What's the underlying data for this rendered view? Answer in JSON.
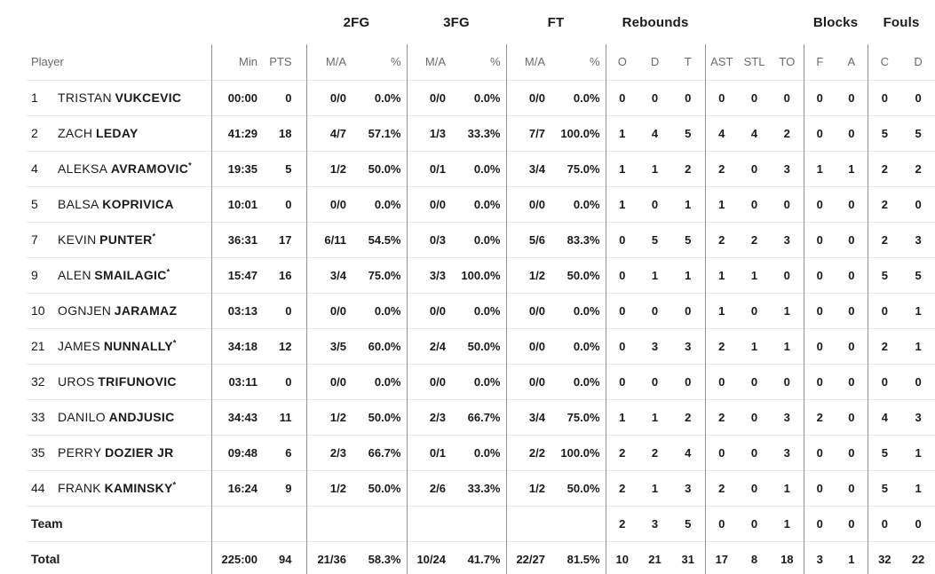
{
  "table": {
    "star_char": "*",
    "group_headers": [
      "2FG",
      "3FG",
      "FT",
      "Rebounds",
      "Blocks",
      "Fouls"
    ],
    "column_headers": [
      "Player",
      "Min",
      "PTS",
      "M/A",
      "%",
      "M/A",
      "%",
      "M/A",
      "%",
      "O",
      "D",
      "T",
      "AST",
      "STL",
      "TO",
      "F",
      "A",
      "C",
      "D"
    ],
    "rows": [
      {
        "type": "player",
        "num": "1",
        "first": "TRISTAN",
        "last": "VUKCEVIC",
        "star": false,
        "min": "00:00",
        "pts": "0",
        "fg2_ma": "0/0",
        "fg2_pct": "0.0%",
        "fg3_ma": "0/0",
        "fg3_pct": "0.0%",
        "ft_ma": "0/0",
        "ft_pct": "0.0%",
        "reb_o": "0",
        "reb_d": "0",
        "reb_t": "0",
        "ast": "0",
        "stl": "0",
        "to": "0",
        "blk_f": "0",
        "blk_a": "0",
        "foul_c": "0",
        "foul_d": "0"
      },
      {
        "type": "player",
        "num": "2",
        "first": "ZACH",
        "last": "LEDAY",
        "star": false,
        "min": "41:29",
        "pts": "18",
        "fg2_ma": "4/7",
        "fg2_pct": "57.1%",
        "fg3_ma": "1/3",
        "fg3_pct": "33.3%",
        "ft_ma": "7/7",
        "ft_pct": "100.0%",
        "reb_o": "1",
        "reb_d": "4",
        "reb_t": "5",
        "ast": "4",
        "stl": "4",
        "to": "2",
        "blk_f": "0",
        "blk_a": "0",
        "foul_c": "5",
        "foul_d": "5"
      },
      {
        "type": "player",
        "num": "4",
        "first": "ALEKSA",
        "last": "AVRAMOVIC",
        "star": true,
        "min": "19:35",
        "pts": "5",
        "fg2_ma": "1/2",
        "fg2_pct": "50.0%",
        "fg3_ma": "0/1",
        "fg3_pct": "0.0%",
        "ft_ma": "3/4",
        "ft_pct": "75.0%",
        "reb_o": "1",
        "reb_d": "1",
        "reb_t": "2",
        "ast": "2",
        "stl": "0",
        "to": "3",
        "blk_f": "1",
        "blk_a": "1",
        "foul_c": "2",
        "foul_d": "2"
      },
      {
        "type": "player",
        "num": "5",
        "first": "BALSA",
        "last": "KOPRIVICA",
        "star": false,
        "min": "10:01",
        "pts": "0",
        "fg2_ma": "0/0",
        "fg2_pct": "0.0%",
        "fg3_ma": "0/0",
        "fg3_pct": "0.0%",
        "ft_ma": "0/0",
        "ft_pct": "0.0%",
        "reb_o": "1",
        "reb_d": "0",
        "reb_t": "1",
        "ast": "1",
        "stl": "0",
        "to": "0",
        "blk_f": "0",
        "blk_a": "0",
        "foul_c": "2",
        "foul_d": "0"
      },
      {
        "type": "player",
        "num": "7",
        "first": "KEVIN",
        "last": "PUNTER",
        "star": true,
        "min": "36:31",
        "pts": "17",
        "fg2_ma": "6/11",
        "fg2_pct": "54.5%",
        "fg3_ma": "0/3",
        "fg3_pct": "0.0%",
        "ft_ma": "5/6",
        "ft_pct": "83.3%",
        "reb_o": "0",
        "reb_d": "5",
        "reb_t": "5",
        "ast": "2",
        "stl": "2",
        "to": "3",
        "blk_f": "0",
        "blk_a": "0",
        "foul_c": "2",
        "foul_d": "3"
      },
      {
        "type": "player",
        "num": "9",
        "first": "ALEN",
        "last": "SMAILAGIC",
        "star": true,
        "min": "15:47",
        "pts": "16",
        "fg2_ma": "3/4",
        "fg2_pct": "75.0%",
        "fg3_ma": "3/3",
        "fg3_pct": "100.0%",
        "ft_ma": "1/2",
        "ft_pct": "50.0%",
        "reb_o": "0",
        "reb_d": "1",
        "reb_t": "1",
        "ast": "1",
        "stl": "1",
        "to": "0",
        "blk_f": "0",
        "blk_a": "0",
        "foul_c": "5",
        "foul_d": "5"
      },
      {
        "type": "player",
        "num": "10",
        "first": "OGNJEN",
        "last": "JARAMAZ",
        "star": false,
        "min": "03:13",
        "pts": "0",
        "fg2_ma": "0/0",
        "fg2_pct": "0.0%",
        "fg3_ma": "0/0",
        "fg3_pct": "0.0%",
        "ft_ma": "0/0",
        "ft_pct": "0.0%",
        "reb_o": "0",
        "reb_d": "0",
        "reb_t": "0",
        "ast": "1",
        "stl": "0",
        "to": "1",
        "blk_f": "0",
        "blk_a": "0",
        "foul_c": "0",
        "foul_d": "1"
      },
      {
        "type": "player",
        "num": "21",
        "first": "JAMES",
        "last": "NUNNALLY",
        "star": true,
        "min": "34:18",
        "pts": "12",
        "fg2_ma": "3/5",
        "fg2_pct": "60.0%",
        "fg3_ma": "2/4",
        "fg3_pct": "50.0%",
        "ft_ma": "0/0",
        "ft_pct": "0.0%",
        "reb_o": "0",
        "reb_d": "3",
        "reb_t": "3",
        "ast": "2",
        "stl": "1",
        "to": "1",
        "blk_f": "0",
        "blk_a": "0",
        "foul_c": "2",
        "foul_d": "1"
      },
      {
        "type": "player",
        "num": "32",
        "first": "UROS",
        "last": "TRIFUNOVIC",
        "star": false,
        "min": "03:11",
        "pts": "0",
        "fg2_ma": "0/0",
        "fg2_pct": "0.0%",
        "fg3_ma": "0/0",
        "fg3_pct": "0.0%",
        "ft_ma": "0/0",
        "ft_pct": "0.0%",
        "reb_o": "0",
        "reb_d": "0",
        "reb_t": "0",
        "ast": "0",
        "stl": "0",
        "to": "0",
        "blk_f": "0",
        "blk_a": "0",
        "foul_c": "0",
        "foul_d": "0"
      },
      {
        "type": "player",
        "num": "33",
        "first": "DANILO",
        "last": "ANDJUSIC",
        "star": false,
        "min": "34:43",
        "pts": "11",
        "fg2_ma": "1/2",
        "fg2_pct": "50.0%",
        "fg3_ma": "2/3",
        "fg3_pct": "66.7%",
        "ft_ma": "3/4",
        "ft_pct": "75.0%",
        "reb_o": "1",
        "reb_d": "1",
        "reb_t": "2",
        "ast": "2",
        "stl": "0",
        "to": "3",
        "blk_f": "2",
        "blk_a": "0",
        "foul_c": "4",
        "foul_d": "3"
      },
      {
        "type": "player",
        "num": "35",
        "first": "PERRY",
        "last": "DOZIER JR",
        "star": false,
        "min": "09:48",
        "pts": "6",
        "fg2_ma": "2/3",
        "fg2_pct": "66.7%",
        "fg3_ma": "0/1",
        "fg3_pct": "0.0%",
        "ft_ma": "2/2",
        "ft_pct": "100.0%",
        "reb_o": "2",
        "reb_d": "2",
        "reb_t": "4",
        "ast": "0",
        "stl": "0",
        "to": "3",
        "blk_f": "0",
        "blk_a": "0",
        "foul_c": "5",
        "foul_d": "1"
      },
      {
        "type": "player",
        "num": "44",
        "first": "FRANK",
        "last": "KAMINSKY",
        "star": true,
        "min": "16:24",
        "pts": "9",
        "fg2_ma": "1/2",
        "fg2_pct": "50.0%",
        "fg3_ma": "2/6",
        "fg3_pct": "33.3%",
        "ft_ma": "1/2",
        "ft_pct": "50.0%",
        "reb_o": "2",
        "reb_d": "1",
        "reb_t": "3",
        "ast": "2",
        "stl": "0",
        "to": "1",
        "blk_f": "0",
        "blk_a": "0",
        "foul_c": "5",
        "foul_d": "1"
      },
      {
        "type": "team",
        "label": "Team",
        "min": "",
        "pts": "",
        "fg2_ma": "",
        "fg2_pct": "",
        "fg3_ma": "",
        "fg3_pct": "",
        "ft_ma": "",
        "ft_pct": "",
        "reb_o": "2",
        "reb_d": "3",
        "reb_t": "5",
        "ast": "0",
        "stl": "0",
        "to": "1",
        "blk_f": "0",
        "blk_a": "0",
        "foul_c": "0",
        "foul_d": "0"
      },
      {
        "type": "total",
        "label": "Total",
        "min": "225:00",
        "pts": "94",
        "fg2_ma": "21/36",
        "fg2_pct": "58.3%",
        "fg3_ma": "10/24",
        "fg3_pct": "41.7%",
        "ft_ma": "22/27",
        "ft_pct": "81.5%",
        "reb_o": "10",
        "reb_d": "21",
        "reb_t": "31",
        "ast": "17",
        "stl": "8",
        "to": "18",
        "blk_f": "3",
        "blk_a": "1",
        "foul_c": "32",
        "foul_d": "22"
      }
    ]
  },
  "colors": {
    "background": "#ffffff",
    "text": "#1a1a1a",
    "header_muted": "#6b6b6b",
    "divider_vertical": "#949494",
    "divider_horizontal": "#eaeaea"
  }
}
